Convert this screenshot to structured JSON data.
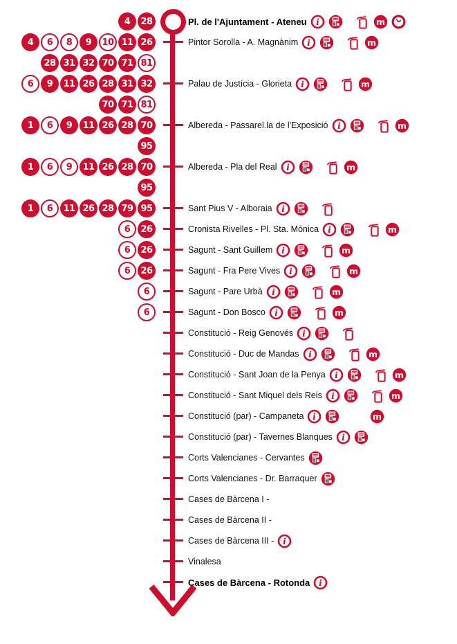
{
  "route": {
    "accent_color": "#ce0e2f",
    "text_color": "#111111",
    "machine_screen_color": "#ffffff",
    "machine_keypad_color": "#6d6e71",
    "icon_names": [
      "info-icon",
      "ticket-machine-icon",
      "bus-stop-post-icon",
      "metro-icon",
      "clock-icon"
    ],
    "stops": [
      {
        "name": "Pl. de l'Ajuntament - Ateneu",
        "bold": true,
        "terminus": true,
        "badges": [
          {
            "number": "4",
            "variant": "filled"
          },
          {
            "number": "28",
            "variant": "filled"
          }
        ],
        "badges2": [],
        "icons": [
          "info",
          "ticket-machine",
          "post",
          "metro",
          "clock"
        ]
      },
      {
        "name": "Pintor Sorolla - A. Magnànim",
        "bold": false,
        "badges": [
          {
            "number": "4",
            "variant": "filled"
          },
          {
            "number": "6",
            "variant": "outline"
          },
          {
            "number": "8",
            "variant": "outline"
          },
          {
            "number": "9",
            "variant": "filled"
          },
          {
            "number": "10",
            "variant": "outline"
          },
          {
            "number": "11",
            "variant": "filled"
          },
          {
            "number": "26",
            "variant": "filled"
          }
        ],
        "badges2": [
          {
            "number": "28",
            "variant": "filled"
          },
          {
            "number": "31",
            "variant": "filled"
          },
          {
            "number": "32",
            "variant": "filled"
          },
          {
            "number": "70",
            "variant": "filled"
          },
          {
            "number": "71",
            "variant": "filled"
          },
          {
            "number": "81",
            "variant": "outline"
          }
        ],
        "icons": [
          "info",
          "ticket-machine",
          "post",
          "metro"
        ]
      },
      {
        "name": "Palau de Justícia - Glorieta",
        "bold": false,
        "badges": [
          {
            "number": "6",
            "variant": "outline"
          },
          {
            "number": "9",
            "variant": "filled"
          },
          {
            "number": "11",
            "variant": "filled"
          },
          {
            "number": "26",
            "variant": "filled"
          },
          {
            "number": "28",
            "variant": "filled"
          },
          {
            "number": "31",
            "variant": "filled"
          },
          {
            "number": "32",
            "variant": "filled"
          }
        ],
        "badges2": [
          {
            "number": "70",
            "variant": "filled"
          },
          {
            "number": "71",
            "variant": "filled"
          },
          {
            "number": "81",
            "variant": "outline"
          }
        ],
        "icons": [
          "info",
          "ticket-machine",
          "post",
          "metro"
        ]
      },
      {
        "name": "Albereda - Passarel.la de l'Exposició",
        "bold": false,
        "badges": [
          {
            "number": "1",
            "variant": "filled"
          },
          {
            "number": "6",
            "variant": "outline"
          },
          {
            "number": "9",
            "variant": "filled"
          },
          {
            "number": "11",
            "variant": "filled"
          },
          {
            "number": "26",
            "variant": "filled"
          },
          {
            "number": "28",
            "variant": "filled"
          },
          {
            "number": "70",
            "variant": "filled"
          }
        ],
        "badges2": [
          {
            "number": "95",
            "variant": "filled"
          }
        ],
        "icons": [
          "info",
          "ticket-machine",
          "post",
          "metro"
        ]
      },
      {
        "name": "Albereda - Pla del Real",
        "bold": false,
        "badges": [
          {
            "number": "1",
            "variant": "filled"
          },
          {
            "number": "6",
            "variant": "outline"
          },
          {
            "number": "9",
            "variant": "outline"
          },
          {
            "number": "11",
            "variant": "filled"
          },
          {
            "number": "26",
            "variant": "filled"
          },
          {
            "number": "28",
            "variant": "filled"
          },
          {
            "number": "70",
            "variant": "filled"
          }
        ],
        "badges2": [
          {
            "number": "95",
            "variant": "filled"
          }
        ],
        "icons": [
          "info",
          "ticket-machine",
          "post",
          "metro"
        ]
      },
      {
        "name": "Sant Pius V - Alboraia",
        "bold": false,
        "badges": [
          {
            "number": "1",
            "variant": "filled"
          },
          {
            "number": "6",
            "variant": "outline"
          },
          {
            "number": "11",
            "variant": "filled"
          },
          {
            "number": "26",
            "variant": "filled"
          },
          {
            "number": "28",
            "variant": "filled"
          },
          {
            "number": "79",
            "variant": "filled"
          },
          {
            "number": "95",
            "variant": "filled"
          }
        ],
        "badges2": [],
        "icons": [
          "info",
          "ticket-machine",
          "post"
        ]
      },
      {
        "name": "Cronista Rivelles - Pl. Sta. Mónica",
        "bold": false,
        "badges": [
          {
            "number": "6",
            "variant": "outline"
          },
          {
            "number": "26",
            "variant": "filled"
          }
        ],
        "badges2": [],
        "icons": [
          "info",
          "ticket-machine",
          "post",
          "metro"
        ]
      },
      {
        "name": "Sagunt - Sant Guillem",
        "bold": false,
        "badges": [
          {
            "number": "6",
            "variant": "outline"
          },
          {
            "number": "26",
            "variant": "filled"
          }
        ],
        "badges2": [],
        "icons": [
          "info",
          "ticket-machine",
          "post",
          "metro"
        ]
      },
      {
        "name": "Sagunt - Fra Pere Vives",
        "bold": false,
        "badges": [
          {
            "number": "6",
            "variant": "outline"
          },
          {
            "number": "26",
            "variant": "filled"
          }
        ],
        "badges2": [],
        "icons": [
          "info",
          "ticket-machine",
          "post",
          "metro"
        ]
      },
      {
        "name": "Sagunt - Pare Urbà",
        "bold": false,
        "badges": [
          {
            "number": "6",
            "variant": "outline"
          }
        ],
        "badges2": [],
        "icons": [
          "info",
          "ticket-machine",
          "post",
          "metro"
        ]
      },
      {
        "name": "Sagunt - Don Bosco",
        "bold": false,
        "badges": [
          {
            "number": "6",
            "variant": "outline"
          }
        ],
        "badges2": [],
        "icons": [
          "info",
          "ticket-machine",
          "post",
          "metro"
        ]
      },
      {
        "name": "Constitució - Reig Genovés",
        "bold": false,
        "badges": [],
        "badges2": [],
        "icons": [
          "info",
          "ticket-machine",
          "post"
        ]
      },
      {
        "name": "Constitució - Duc de Mandas",
        "bold": false,
        "badges": [],
        "badges2": [],
        "icons": [
          "info",
          "ticket-machine",
          "post",
          "metro"
        ]
      },
      {
        "name": "Constitució - Sant Joan de la Penya",
        "bold": false,
        "badges": [],
        "badges2": [],
        "icons": [
          "info",
          "ticket-machine",
          "post",
          "metro"
        ]
      },
      {
        "name": "Constitució - Sant Miquel dels Reis",
        "bold": false,
        "badges": [],
        "badges2": [],
        "icons": [
          "info",
          "ticket-machine",
          "post",
          "metro"
        ]
      },
      {
        "name": "Constitució (par) - Campaneta",
        "bold": false,
        "badges": [],
        "badges2": [],
        "icons": [
          "info",
          "ticket-machine",
          "spacer",
          "metro"
        ]
      },
      {
        "name": "Constitució (par) - Tavernes Blanques",
        "bold": false,
        "badges": [],
        "badges2": [],
        "icons": [
          "info",
          "ticket-machine"
        ]
      },
      {
        "name": "Corts Valencianes - Cervantes",
        "bold": false,
        "badges": [],
        "badges2": [],
        "icons": [
          "ticket-machine"
        ]
      },
      {
        "name": "Corts Valencianes - Dr. Barraquer",
        "bold": false,
        "badges": [],
        "badges2": [],
        "icons": [
          "ticket-machine"
        ]
      },
      {
        "name": "Cases de Bàrcena I  -",
        "bold": false,
        "badges": [],
        "badges2": [],
        "icons": []
      },
      {
        "name": "Cases de Bàrcena II -",
        "bold": false,
        "badges": [],
        "badges2": [],
        "icons": []
      },
      {
        "name": "Cases de Bàrcena III -",
        "bold": false,
        "badges": [],
        "badges2": [],
        "icons": [
          "info"
        ]
      },
      {
        "name": "Vinalesa",
        "bold": false,
        "badges": [],
        "badges2": [],
        "icons": []
      },
      {
        "name": "Cases de Bàrcena - Rotonda",
        "bold": true,
        "badges": [],
        "badges2": [],
        "icons": [
          "info"
        ]
      }
    ]
  }
}
